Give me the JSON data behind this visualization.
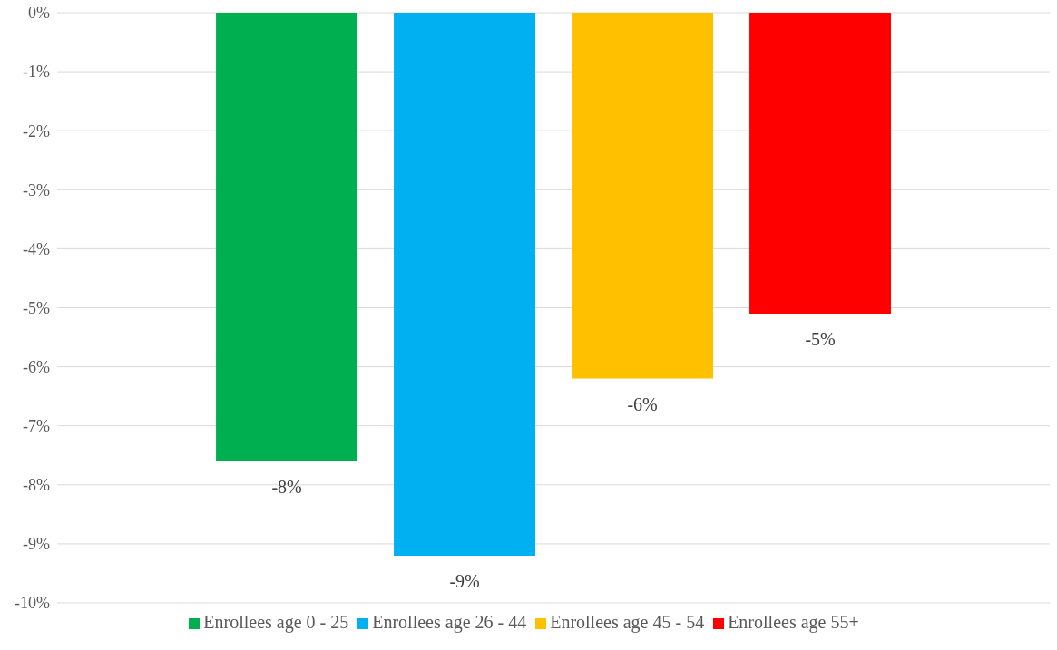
{
  "chart_data": {
    "type": "bar",
    "categories": [
      null
    ],
    "series": [
      {
        "name": "Enrollees age 0 - 25",
        "color": "#00b050",
        "values": [
          -7.6
        ],
        "value_labels": [
          "-8%"
        ]
      },
      {
        "name": "Enrollees age 26 - 44",
        "color": "#00b0f0",
        "values": [
          -9.2
        ],
        "value_labels": [
          "-9%"
        ]
      },
      {
        "name": "Enrollees age 45 - 54",
        "color": "#ffc000",
        "values": [
          -6.2
        ],
        "value_labels": [
          "-6%"
        ]
      },
      {
        "name": "Enrollees age 55+",
        "color": "#ff0000",
        "values": [
          -5.1
        ],
        "value_labels": [
          "-5%"
        ]
      }
    ],
    "ylim": [
      -10,
      0
    ],
    "yticks": [
      {
        "value": 0,
        "label": "0%"
      },
      {
        "value": -1,
        "label": "-1%"
      },
      {
        "value": -2,
        "label": "-2%"
      },
      {
        "value": -3,
        "label": "-3%"
      },
      {
        "value": -4,
        "label": "-4%"
      },
      {
        "value": -5,
        "label": "-5%"
      },
      {
        "value": -6,
        "label": "-6%"
      },
      {
        "value": -7,
        "label": "-7%"
      },
      {
        "value": -8,
        "label": "-8%"
      },
      {
        "value": -9,
        "label": "-9%"
      },
      {
        "value": -10,
        "label": "-10%"
      }
    ],
    "grid": "y",
    "legend": "bottom"
  }
}
